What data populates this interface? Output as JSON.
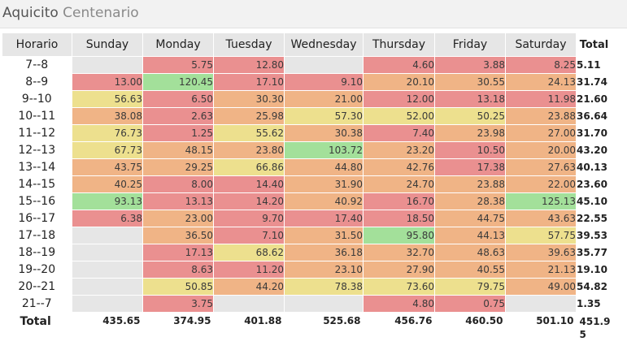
{
  "title": {
    "location": "Aquicito",
    "place": "Centenario"
  },
  "table": {
    "headers": [
      "Horario",
      "Sunday",
      "Monday",
      "Tuesday",
      "Wednesday",
      "Thursday",
      "Friday",
      "Saturday",
      "Total"
    ],
    "rows": [
      {
        "label": "7--8",
        "cells": [
          "",
          "5.75",
          "12.80",
          "",
          "4.60",
          "3.88",
          "8.25"
        ],
        "total": "5.11"
      },
      {
        "label": "8--9",
        "cells": [
          "13.00",
          "120.45",
          "17.10",
          "9.10",
          "20.10",
          "30.55",
          "24.13"
        ],
        "total": "31.74"
      },
      {
        "label": "9--10",
        "cells": [
          "56.63",
          "6.50",
          "30.30",
          "21.00",
          "12.00",
          "13.18",
          "11.98"
        ],
        "total": "21.60"
      },
      {
        "label": "10--11",
        "cells": [
          "38.08",
          "2.63",
          "25.98",
          "57.30",
          "52.00",
          "50.25",
          "23.88"
        ],
        "total": "36.64"
      },
      {
        "label": "11--12",
        "cells": [
          "76.73",
          "1.25",
          "55.62",
          "30.38",
          "7.40",
          "23.98",
          "27.00"
        ],
        "total": "31.70"
      },
      {
        "label": "12--13",
        "cells": [
          "67.73",
          "48.15",
          "23.80",
          "103.72",
          "23.20",
          "10.50",
          "20.00"
        ],
        "total": "43.20"
      },
      {
        "label": "13--14",
        "cells": [
          "43.75",
          "29.25",
          "66.86",
          "44.80",
          "42.76",
          "17.38",
          "27.63"
        ],
        "total": "40.13"
      },
      {
        "label": "14--15",
        "cells": [
          "40.25",
          "8.00",
          "14.40",
          "31.90",
          "24.70",
          "23.88",
          "22.00"
        ],
        "total": "23.60"
      },
      {
        "label": "15--16",
        "cells": [
          "93.13",
          "13.13",
          "14.20",
          "40.92",
          "16.70",
          "28.38",
          "125.13"
        ],
        "total": "45.10"
      },
      {
        "label": "16--17",
        "cells": [
          "6.38",
          "23.00",
          "9.70",
          "17.40",
          "18.50",
          "44.75",
          "43.63"
        ],
        "total": "22.55"
      },
      {
        "label": "17--18",
        "cells": [
          "",
          "36.50",
          "7.10",
          "31.50",
          "95.80",
          "44.13",
          "57.75"
        ],
        "total": "39.53"
      },
      {
        "label": "18--19",
        "cells": [
          "",
          "17.13",
          "68.62",
          "36.18",
          "32.70",
          "48.63",
          "39.63"
        ],
        "total": "35.77"
      },
      {
        "label": "19--20",
        "cells": [
          "",
          "8.63",
          "11.20",
          "23.10",
          "27.90",
          "40.55",
          "21.13"
        ],
        "total": "19.10"
      },
      {
        "label": "20--21",
        "cells": [
          "",
          "50.85",
          "44.20",
          "78.38",
          "73.60",
          "79.75",
          "49.00"
        ],
        "total": "54.82"
      },
      {
        "label": "21--7",
        "cells": [
          "",
          "3.75",
          "",
          "",
          "4.80",
          "0.75",
          ""
        ],
        "total": "1.35"
      }
    ],
    "total_row": {
      "label": "Total",
      "cells": [
        "435.65",
        "374.95",
        "401.88",
        "525.68",
        "456.76",
        "460.50",
        "501.10"
      ],
      "grand_total": "451.95"
    }
  },
  "colors": {
    "empty": "#e6e6e6",
    "low": "#ea9090",
    "mid_low": "#f0b486",
    "mid": "#ede08e",
    "high": "#a3e09a"
  }
}
